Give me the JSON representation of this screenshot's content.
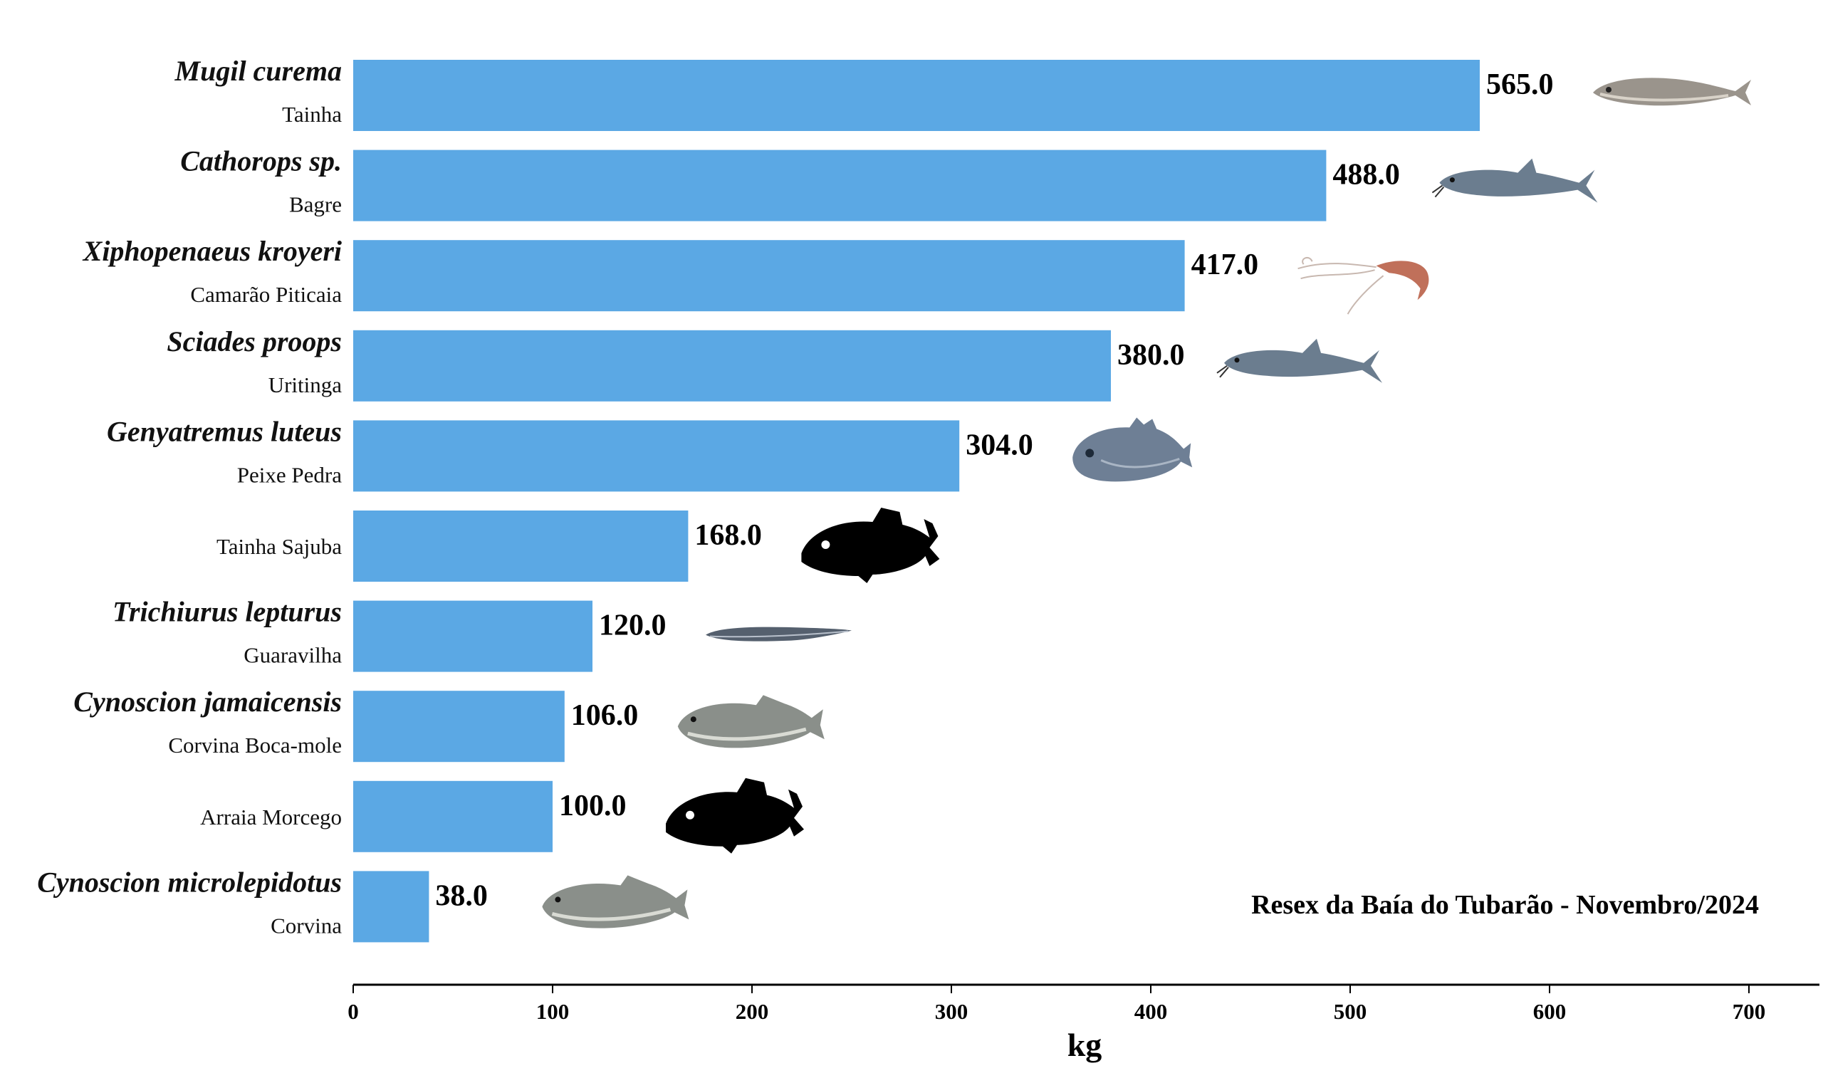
{
  "chart_data": {
    "type": "bar",
    "orientation": "horizontal",
    "annotation": "Resex da Baía do Tubarão - Novembro/2024",
    "xlabel": "kg",
    "ylabel": "",
    "xlim": [
      0,
      735
    ],
    "xticks": [
      0,
      100,
      200,
      300,
      400,
      500,
      600,
      700
    ],
    "grid": false,
    "bar_color": "#5BA8E4",
    "categories": [
      {
        "scientific": "Mugil curema",
        "common": "Tainha",
        "value": 565.0,
        "value_label": "565.0",
        "icon": "mullet-fish-icon"
      },
      {
        "scientific": "Cathorops sp.",
        "common": "Bagre",
        "value": 488.0,
        "value_label": "488.0",
        "icon": "catfish-icon"
      },
      {
        "scientific": "Xiphopenaeus kroyeri",
        "common": "Camarão Piticaia",
        "value": 417.0,
        "value_label": "417.0",
        "icon": "shrimp-icon"
      },
      {
        "scientific": "Sciades proops",
        "common": "Uritinga",
        "value": 380.0,
        "value_label": "380.0",
        "icon": "catfish-icon"
      },
      {
        "scientific": "Genyatremus luteus",
        "common": "Peixe Pedra",
        "value": 304.0,
        "value_label": "304.0",
        "icon": "grunt-fish-icon"
      },
      {
        "scientific": "",
        "common": "Tainha Sajuba",
        "value": 168.0,
        "value_label": "168.0",
        "icon": "fish-silhouette-icon"
      },
      {
        "scientific": "Trichiurus lepturus",
        "common": "Guaravilha",
        "value": 120.0,
        "value_label": "120.0",
        "icon": "cutlassfish-icon"
      },
      {
        "scientific": "Cynoscion jamaicensis",
        "common": "Corvina Boca-mole",
        "value": 106.0,
        "value_label": "106.0",
        "icon": "weakfish-icon"
      },
      {
        "scientific": "",
        "common": "Arraia Morcego",
        "value": 100.0,
        "value_label": "100.0",
        "icon": "fish-silhouette-icon"
      },
      {
        "scientific": "Cynoscion microlepidotus",
        "common": "Corvina",
        "value": 38.0,
        "value_label": "38.0",
        "icon": "weakfish-icon"
      }
    ]
  }
}
